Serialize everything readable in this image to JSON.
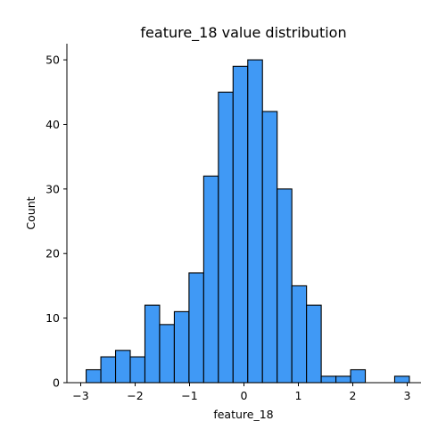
{
  "chart_data": {
    "type": "bar",
    "title": "feature_18 value distribution",
    "xlabel": "feature_18",
    "ylabel": "Count",
    "x_range": [
      -3.1,
      3.3
    ],
    "ylim": [
      0,
      52.5
    ],
    "bin_start": -2.9,
    "bin_width": 0.27,
    "values": [
      2,
      4,
      5,
      4,
      12,
      9,
      11,
      17,
      32,
      45,
      49,
      50,
      42,
      30,
      15,
      12,
      1,
      1,
      2,
      0,
      0,
      1
    ],
    "x_ticks": [
      -3,
      -2,
      -1,
      0,
      1,
      2,
      3
    ],
    "x_tick_labels": [
      "−3",
      "−2",
      "−1",
      "0",
      "1",
      "2",
      "3"
    ],
    "y_ticks": [
      0,
      10,
      20,
      30,
      40,
      50
    ],
    "y_tick_labels": [
      "0",
      "10",
      "20",
      "30",
      "40",
      "50"
    ],
    "bar_color": "#4099f5",
    "edge_color": "#000000",
    "grid": false,
    "legend": "none"
  }
}
